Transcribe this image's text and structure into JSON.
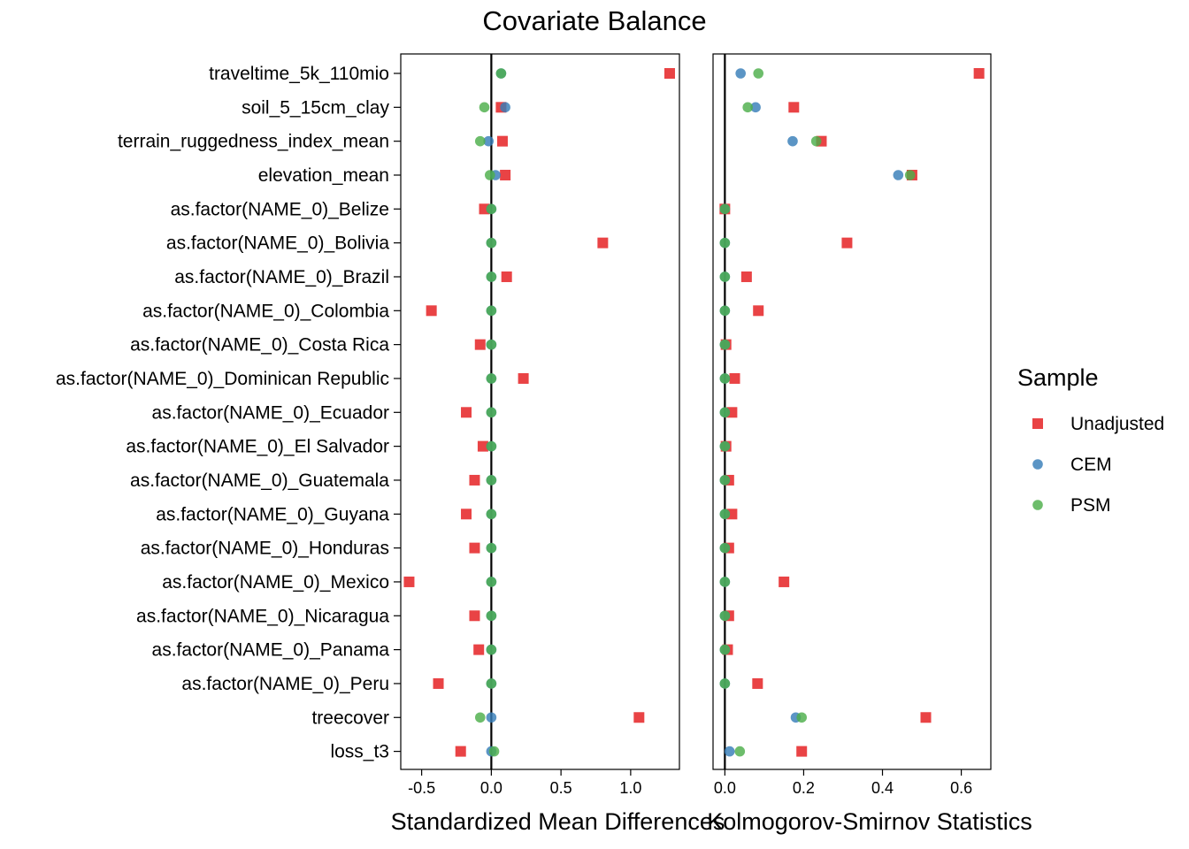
{
  "chart_data": {
    "type": "scatter",
    "title": "Covariate Balance",
    "covariates": [
      "traveltime_5k_110mio",
      "soil_5_15cm_clay",
      "terrain_ruggedness_index_mean",
      "elevation_mean",
      "as.factor(NAME_0)_Belize",
      "as.factor(NAME_0)_Bolivia",
      "as.factor(NAME_0)_Brazil",
      "as.factor(NAME_0)_Colombia",
      "as.factor(NAME_0)_Costa Rica",
      "as.factor(NAME_0)_Dominican Republic",
      "as.factor(NAME_0)_Ecuador",
      "as.factor(NAME_0)_El Salvador",
      "as.factor(NAME_0)_Guatemala",
      "as.factor(NAME_0)_Guyana",
      "as.factor(NAME_0)_Honduras",
      "as.factor(NAME_0)_Mexico",
      "as.factor(NAME_0)_Nicaragua",
      "as.factor(NAME_0)_Panama",
      "as.factor(NAME_0)_Peru",
      "treecover",
      "loss_t3"
    ],
    "legend": {
      "title": "Sample",
      "placement": "right",
      "entries": [
        {
          "name": "Unadjusted",
          "color": "#E41A1C",
          "shape": "square"
        },
        {
          "name": "CEM",
          "color": "#377EB8",
          "shape": "circle"
        },
        {
          "name": "PSM",
          "color": "#4DAF4A",
          "shape": "circle"
        }
      ]
    },
    "panels": [
      {
        "xlabel": "Standardized Mean Differences",
        "xlim": [
          -0.65,
          1.35
        ],
        "xticks": [
          -0.5,
          0.0,
          0.5,
          1.0
        ],
        "xtick_labels": [
          "-0.5",
          "0.0",
          "0.5",
          "1.0"
        ],
        "vline": 0,
        "series": [
          {
            "name": "Unadjusted",
            "values": [
              1.28,
              0.07,
              0.08,
              0.1,
              -0.05,
              0.8,
              0.11,
              -0.43,
              -0.08,
              0.23,
              -0.18,
              -0.06,
              -0.12,
              -0.18,
              -0.12,
              -0.59,
              -0.12,
              -0.09,
              -0.38,
              1.06,
              -0.22
            ]
          },
          {
            "name": "CEM",
            "values": [
              0.07,
              0.1,
              -0.02,
              0.03,
              0.0,
              0.0,
              0.0,
              0.0,
              0.0,
              0.0,
              0.0,
              0.0,
              0.0,
              0.0,
              0.0,
              0.0,
              0.0,
              0.0,
              0.0,
              0.0,
              0.0
            ]
          },
          {
            "name": "PSM",
            "values": [
              0.07,
              -0.05,
              -0.08,
              -0.01,
              0.0,
              0.0,
              0.0,
              0.0,
              0.0,
              0.0,
              0.0,
              0.0,
              0.0,
              0.0,
              0.0,
              0.0,
              0.0,
              0.0,
              0.0,
              -0.08,
              0.02
            ]
          }
        ]
      },
      {
        "xlabel": "Kolmogorov-Smirnov Statistics",
        "xlim": [
          -0.03,
          0.675
        ],
        "xticks": [
          0.0,
          0.2,
          0.4,
          0.6
        ],
        "xtick_labels": [
          "0.0",
          "0.2",
          "0.4",
          "0.6"
        ],
        "vline": 0,
        "series": [
          {
            "name": "Unadjusted",
            "values": [
              0.645,
              0.175,
              0.245,
              0.475,
              0.0,
              0.31,
              0.055,
              0.085,
              0.003,
              0.025,
              0.018,
              0.003,
              0.01,
              0.018,
              0.01,
              0.15,
              0.01,
              0.007,
              0.083,
              0.51,
              0.195
            ]
          },
          {
            "name": "CEM",
            "values": [
              0.04,
              0.078,
              0.172,
              0.44,
              0.0,
              0.0,
              0.0,
              0.0,
              0.0,
              0.0,
              0.0,
              0.0,
              0.0,
              0.0,
              0.0,
              0.0,
              0.0,
              0.0,
              0.0,
              0.18,
              0.012
            ]
          },
          {
            "name": "PSM",
            "values": [
              0.085,
              0.058,
              0.232,
              0.47,
              0.0,
              0.0,
              0.0,
              0.0,
              0.0,
              0.0,
              0.0,
              0.0,
              0.0,
              0.0,
              0.0,
              0.0,
              0.0,
              0.0,
              0.0,
              0.195,
              0.038
            ]
          }
        ]
      }
    ]
  }
}
